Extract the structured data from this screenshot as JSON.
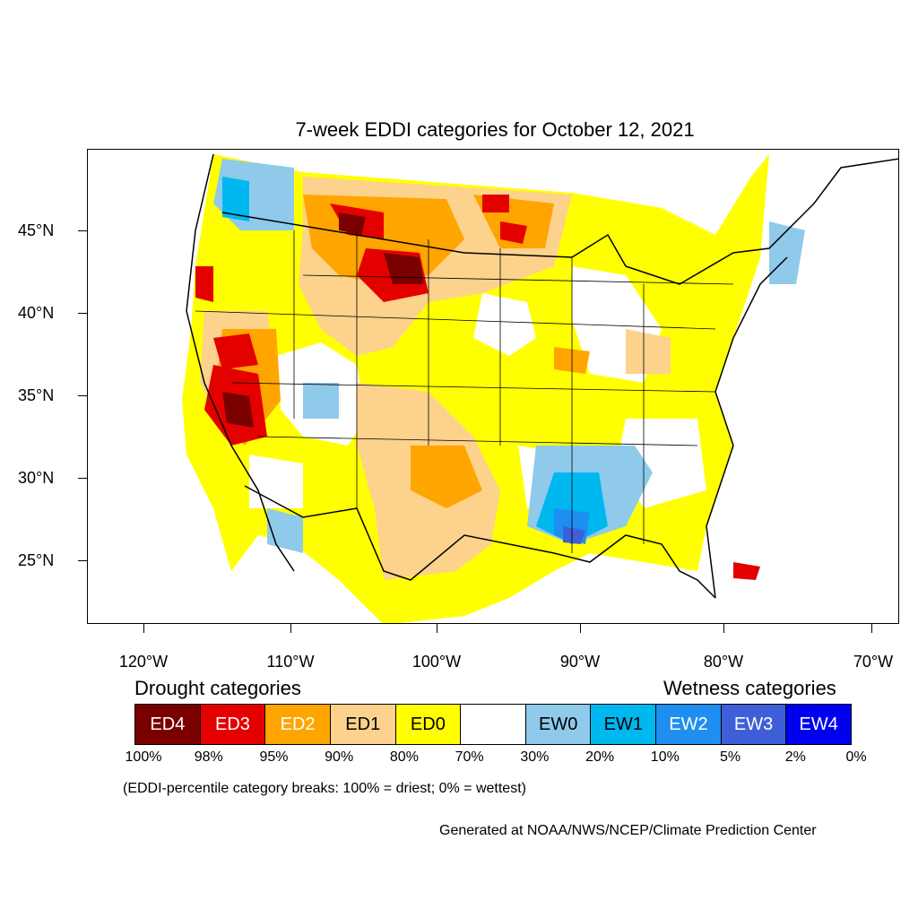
{
  "title": "7-week EDDI categories for October 12, 2021",
  "latitude_labels": [
    "45°N",
    "40°N",
    "35°N",
    "30°N",
    "25°N"
  ],
  "longitude_labels": [
    "120°W",
    "110°W",
    "100°W",
    "90°W",
    "80°W",
    "70°W"
  ],
  "legend": {
    "drought_title": "Drought categories",
    "wetness_title": "Wetness categories",
    "categories": [
      {
        "label": "ED4",
        "color": "#7a0000",
        "text_color": "#ffffff"
      },
      {
        "label": "ED3",
        "color": "#e50000",
        "text_color": "#ffffff"
      },
      {
        "label": "ED2",
        "color": "#ffa500",
        "text_color": "#ffffff"
      },
      {
        "label": "ED1",
        "color": "#fcd28c",
        "text_color": "#000000"
      },
      {
        "label": "ED0",
        "color": "#ffff00",
        "text_color": "#000000"
      },
      {
        "label": "",
        "color": "#ffffff",
        "text_color": "#000000"
      },
      {
        "label": "EW0",
        "color": "#8fcaeb",
        "text_color": "#000000"
      },
      {
        "label": "EW1",
        "color": "#00b8f0",
        "text_color": "#000000"
      },
      {
        "label": "EW2",
        "color": "#1e8ff0",
        "text_color": "#ffffff"
      },
      {
        "label": "EW3",
        "color": "#3f5fd8",
        "text_color": "#ffffff"
      },
      {
        "label": "EW4",
        "color": "#0000f0",
        "text_color": "#ffffff"
      }
    ],
    "percentiles": [
      "100%",
      "98%",
      "95%",
      "90%",
      "80%",
      "70%",
      "30%",
      "20%",
      "10%",
      "5%",
      "2%",
      "0%"
    ]
  },
  "note": "(EDDI-percentile category breaks: 100% = driest; 0% = wettest)",
  "credit": "Generated at NOAA/NWS/NCEP/Climate Prediction Center"
}
